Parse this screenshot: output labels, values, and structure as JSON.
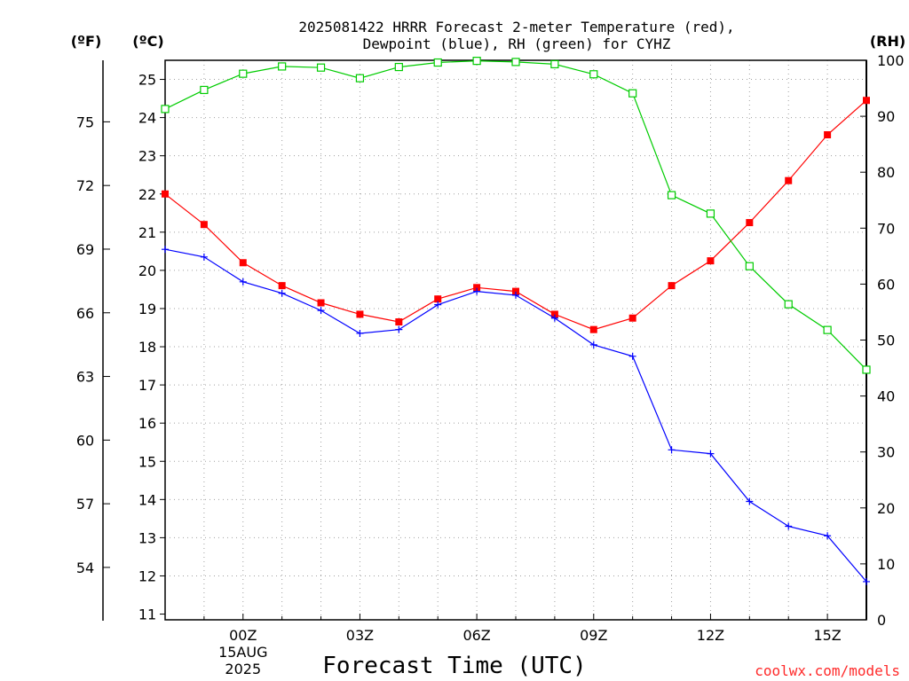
{
  "chart_data": {
    "type": "line",
    "title_line1": "2025081422 HRRR Forecast 2-meter Temperature (red),",
    "title_line2": "Dewpoint (blue), RH (green) for CYHZ",
    "xlabel": "Forecast Time (UTC)",
    "watermark": "coolwx.com/models",
    "left_axis_f_label": "(ºF)",
    "left_axis_c_label": "(ºC)",
    "right_axis_label": "(RH)",
    "x_hours": [
      -2,
      -1,
      0,
      1,
      2,
      3,
      4,
      5,
      6,
      7,
      8,
      9,
      10,
      11,
      12,
      13,
      14,
      15,
      16
    ],
    "x_range": [
      -2,
      16
    ],
    "x_ticks": [
      {
        "hour": 0,
        "label": "00Z",
        "sub1": "15AUG",
        "sub2": "2025"
      },
      {
        "hour": 3,
        "label": "03Z"
      },
      {
        "hour": 6,
        "label": "06Z"
      },
      {
        "hour": 9,
        "label": "09Z"
      },
      {
        "hour": 12,
        "label": "12Z"
      },
      {
        "hour": 15,
        "label": "15Z"
      }
    ],
    "celsius_range": [
      10.85,
      25.5
    ],
    "celsius_ticks": [
      11,
      12,
      13,
      14,
      15,
      16,
      17,
      18,
      19,
      20,
      21,
      22,
      23,
      24,
      25
    ],
    "fahrenheit_ticks": [
      54,
      57,
      60,
      63,
      66,
      69,
      72,
      75
    ],
    "rh_range": [
      0,
      100
    ],
    "rh_ticks": [
      0,
      10,
      20,
      30,
      40,
      50,
      60,
      70,
      80,
      90,
      100
    ],
    "grid": true,
    "colors": {
      "temperature": "#ff0000",
      "dewpoint": "#0000ff",
      "rh": "#00cc00",
      "grid": "#a0a0a0",
      "watermark": "#ff2a2a",
      "text": "#000000"
    },
    "series": [
      {
        "name": "Temperature",
        "axis": "celsius",
        "marker": "filled-square",
        "values": [
          22.0,
          21.2,
          20.2,
          19.6,
          19.15,
          18.85,
          18.65,
          19.25,
          19.55,
          19.45,
          18.85,
          18.45,
          18.75,
          19.6,
          20.25,
          21.25,
          22.35,
          23.55,
          24.45
        ]
      },
      {
        "name": "Dewpoint",
        "axis": "celsius",
        "marker": "plus",
        "values": [
          20.55,
          20.35,
          19.7,
          19.4,
          18.95,
          18.35,
          18.45,
          19.1,
          19.45,
          19.35,
          18.75,
          18.05,
          17.75,
          15.3,
          15.2,
          13.95,
          13.3,
          13.05,
          11.85
        ]
      },
      {
        "name": "RH",
        "axis": "rh",
        "marker": "open-square",
        "values": [
          91.3,
          94.7,
          97.6,
          98.9,
          98.7,
          96.8,
          98.8,
          99.6,
          99.9,
          99.7,
          99.3,
          97.5,
          94.1,
          75.9,
          72.6,
          63.2,
          56.4,
          51.8,
          44.7
        ]
      }
    ]
  }
}
